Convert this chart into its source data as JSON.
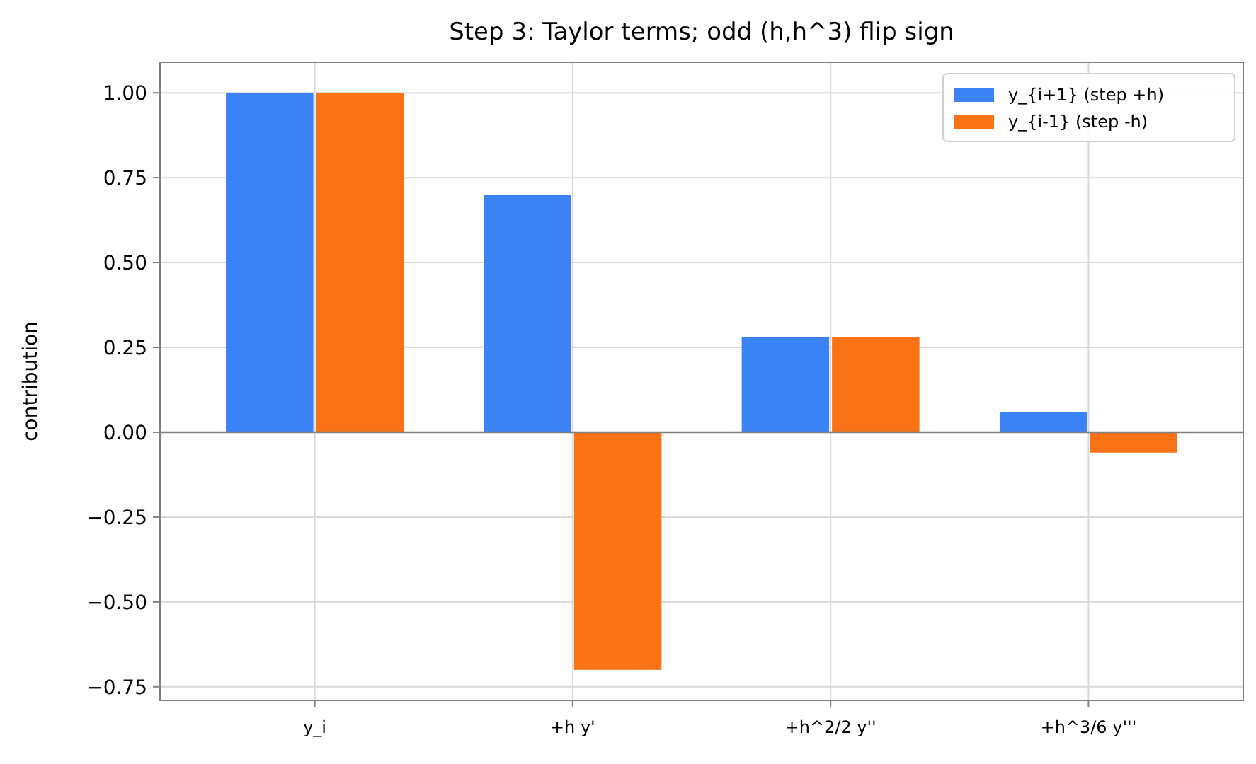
{
  "chart_data": {
    "type": "bar",
    "title": "Step 3: Taylor terms; odd (h,h^3) flip sign",
    "ylabel": "contribution",
    "categories": [
      "y_i",
      "+h y'",
      "+h^2/2 y''",
      "+h^3/6 y'''"
    ],
    "series": [
      {
        "name": "y_{i+1} (step +h)",
        "color": "#3b82f6",
        "values": [
          1.0,
          0.7,
          0.28,
          0.06
        ]
      },
      {
        "name": "y_{i-1} (step -h)",
        "color": "#f97316",
        "values": [
          1.0,
          -0.7,
          0.28,
          -0.06
        ]
      }
    ],
    "ylim": [
      -0.79,
      1.09
    ],
    "yticks": [
      {
        "value": -0.75,
        "label": "−0.75"
      },
      {
        "value": -0.5,
        "label": "−0.50"
      },
      {
        "value": -0.25,
        "label": "−0.25"
      },
      {
        "value": 0,
        "label": "0.00"
      },
      {
        "value": 0.25,
        "label": "0.25"
      },
      {
        "value": 0.5,
        "label": "0.50"
      },
      {
        "value": 0.75,
        "label": "0.75"
      },
      {
        "value": 1,
        "label": "1.00"
      }
    ],
    "ref_lines": [
      {
        "axis": "y",
        "value": 0,
        "color": "#808080"
      }
    ],
    "grid": true,
    "legend": "top right"
  }
}
